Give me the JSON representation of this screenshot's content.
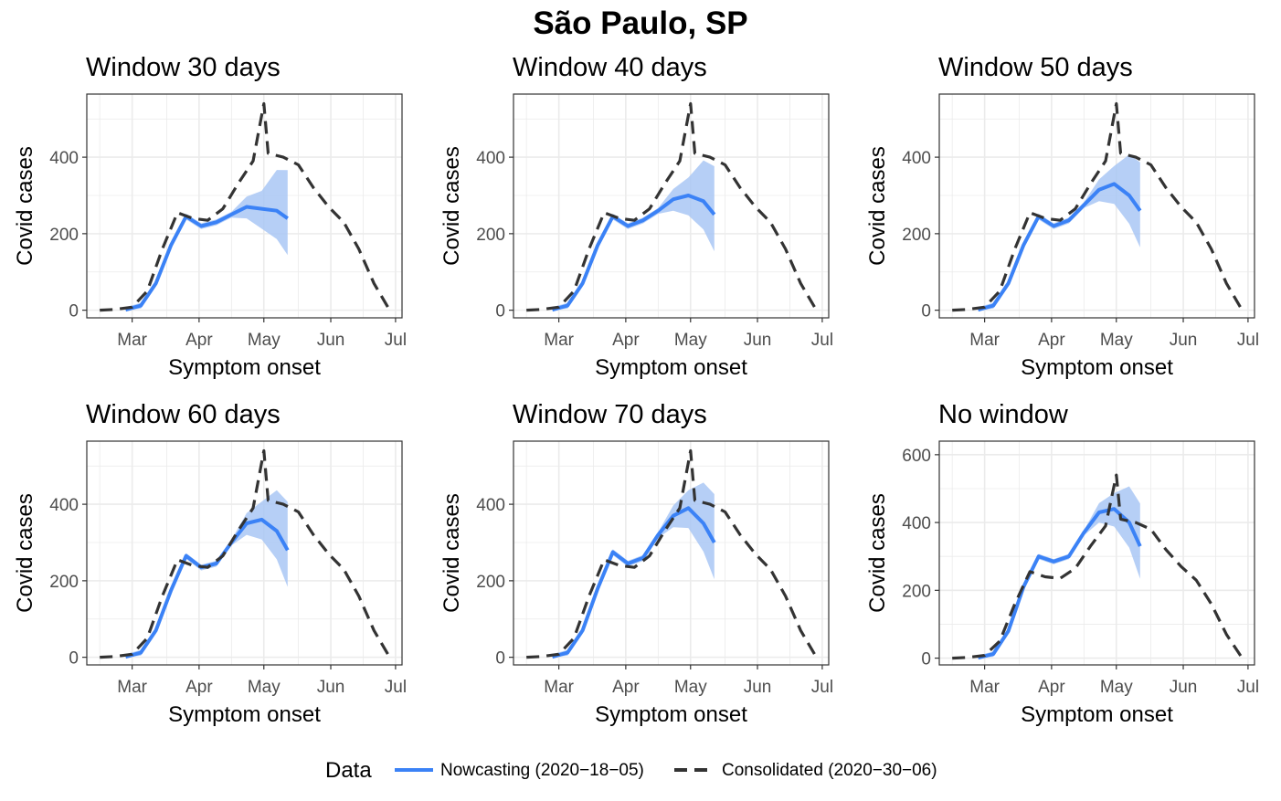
{
  "figure": {
    "title": "São Paulo, SP"
  },
  "legend": {
    "title": "Data",
    "items": [
      {
        "label": "Nowcasting (2020−18−05)",
        "color": "#3b82f6",
        "style": "solid"
      },
      {
        "label": "Consolidated (2020−30−06)",
        "color": "#333333",
        "style": "dashed"
      }
    ],
    "placement": "bottom"
  },
  "colors": {
    "nowcast": "#3b82f6",
    "band": "#a9c7f5",
    "consolidated": "#333333",
    "grid": "#ebebeb"
  },
  "chart_data": [
    {
      "type": "line",
      "title": "Window 30 days",
      "xlabel": "Symptom onset",
      "ylabel": "Covid cases",
      "x_ticks": [
        "Mar",
        "Apr",
        "May",
        "Jun",
        "Jul"
      ],
      "y_ticks": [
        0,
        200,
        400
      ],
      "ylim": [
        -20,
        565
      ],
      "series": [
        {
          "name": "Nowcasting (2020−18−05)",
          "x": [
            "2020-02-27",
            "2020-03-05",
            "2020-03-12",
            "2020-03-19",
            "2020-03-26",
            "2020-04-02",
            "2020-04-09",
            "2020-04-16",
            "2020-04-23",
            "2020-04-30",
            "2020-05-07",
            "2020-05-12"
          ],
          "values": [
            1,
            12,
            70,
            170,
            245,
            220,
            230,
            250,
            270,
            265,
            260,
            240
          ]
        },
        {
          "name": "Consolidated (2020−30−06)",
          "x": [
            "2020-02-15",
            "2020-02-22",
            "2020-03-01",
            "2020-03-08",
            "2020-03-15",
            "2020-03-22",
            "2020-03-29",
            "2020-04-05",
            "2020-04-12",
            "2020-04-19",
            "2020-04-26",
            "2020-05-01",
            "2020-05-03",
            "2020-05-10",
            "2020-05-17",
            "2020-05-24",
            "2020-05-31",
            "2020-06-07",
            "2020-06-14",
            "2020-06-21",
            "2020-06-28"
          ],
          "values": [
            0,
            2,
            8,
            50,
            160,
            255,
            240,
            235,
            265,
            330,
            390,
            540,
            410,
            400,
            380,
            320,
            270,
            230,
            160,
            70,
            3
          ]
        }
      ]
    },
    {
      "type": "line",
      "title": "Window 40 days",
      "xlabel": "Symptom onset",
      "ylabel": "Covid cases",
      "x_ticks": [
        "Mar",
        "Apr",
        "May",
        "Jun",
        "Jul"
      ],
      "y_ticks": [
        0,
        200,
        400
      ],
      "ylim": [
        -20,
        565
      ],
      "series": [
        {
          "name": "Nowcasting (2020−18−05)",
          "x": [
            "2020-02-27",
            "2020-03-05",
            "2020-03-12",
            "2020-03-19",
            "2020-03-26",
            "2020-04-02",
            "2020-04-09",
            "2020-04-16",
            "2020-04-23",
            "2020-04-30",
            "2020-05-07",
            "2020-05-12"
          ],
          "values": [
            1,
            12,
            70,
            170,
            245,
            220,
            235,
            260,
            290,
            300,
            285,
            250
          ]
        },
        {
          "name": "Consolidated (2020−30−06)",
          "x": [
            "2020-02-15",
            "2020-02-22",
            "2020-03-01",
            "2020-03-08",
            "2020-03-15",
            "2020-03-22",
            "2020-03-29",
            "2020-04-05",
            "2020-04-12",
            "2020-04-19",
            "2020-04-26",
            "2020-05-01",
            "2020-05-03",
            "2020-05-10",
            "2020-05-17",
            "2020-05-24",
            "2020-05-31",
            "2020-06-07",
            "2020-06-14",
            "2020-06-21",
            "2020-06-28"
          ],
          "values": [
            0,
            2,
            8,
            50,
            160,
            255,
            240,
            235,
            265,
            330,
            390,
            540,
            410,
            400,
            380,
            320,
            270,
            230,
            160,
            70,
            3
          ]
        }
      ]
    },
    {
      "type": "line",
      "title": "Window 50 days",
      "xlabel": "Symptom onset",
      "ylabel": "Covid cases",
      "x_ticks": [
        "Mar",
        "Apr",
        "May",
        "Jun",
        "Jul"
      ],
      "y_ticks": [
        0,
        200,
        400
      ],
      "ylim": [
        -20,
        565
      ],
      "series": [
        {
          "name": "Nowcasting (2020−18−05)",
          "x": [
            "2020-02-27",
            "2020-03-05",
            "2020-03-12",
            "2020-03-19",
            "2020-03-26",
            "2020-04-02",
            "2020-04-09",
            "2020-04-16",
            "2020-04-23",
            "2020-04-30",
            "2020-05-07",
            "2020-05-12"
          ],
          "values": [
            1,
            12,
            70,
            170,
            245,
            220,
            235,
            275,
            315,
            330,
            300,
            260
          ]
        },
        {
          "name": "Consolidated (2020−30−06)",
          "x": [
            "2020-02-15",
            "2020-02-22",
            "2020-03-01",
            "2020-03-08",
            "2020-03-15",
            "2020-03-22",
            "2020-03-29",
            "2020-04-05",
            "2020-04-12",
            "2020-04-19",
            "2020-04-26",
            "2020-05-01",
            "2020-05-03",
            "2020-05-10",
            "2020-05-17",
            "2020-05-24",
            "2020-05-31",
            "2020-06-07",
            "2020-06-14",
            "2020-06-21",
            "2020-06-28"
          ],
          "values": [
            0,
            2,
            8,
            50,
            160,
            255,
            240,
            235,
            265,
            330,
            390,
            540,
            410,
            400,
            380,
            320,
            270,
            230,
            160,
            70,
            3
          ]
        }
      ]
    },
    {
      "type": "line",
      "title": "Window 60 days",
      "xlabel": "Symptom onset",
      "ylabel": "Covid cases",
      "x_ticks": [
        "Mar",
        "Apr",
        "May",
        "Jun",
        "Jul"
      ],
      "y_ticks": [
        0,
        200,
        400
      ],
      "ylim": [
        -20,
        565
      ],
      "series": [
        {
          "name": "Nowcasting (2020−18−05)",
          "x": [
            "2020-02-27",
            "2020-03-05",
            "2020-03-12",
            "2020-03-19",
            "2020-03-26",
            "2020-04-02",
            "2020-04-09",
            "2020-04-16",
            "2020-04-23",
            "2020-04-30",
            "2020-05-07",
            "2020-05-12"
          ],
          "values": [
            1,
            12,
            70,
            175,
            265,
            235,
            245,
            300,
            350,
            360,
            330,
            280
          ]
        },
        {
          "name": "Consolidated (2020−30−06)",
          "x": [
            "2020-02-15",
            "2020-02-22",
            "2020-03-01",
            "2020-03-08",
            "2020-03-15",
            "2020-03-22",
            "2020-03-29",
            "2020-04-05",
            "2020-04-12",
            "2020-04-19",
            "2020-04-26",
            "2020-05-01",
            "2020-05-03",
            "2020-05-10",
            "2020-05-17",
            "2020-05-24",
            "2020-05-31",
            "2020-06-07",
            "2020-06-14",
            "2020-06-21",
            "2020-06-28"
          ],
          "values": [
            0,
            2,
            8,
            50,
            160,
            255,
            240,
            235,
            265,
            330,
            390,
            540,
            410,
            400,
            380,
            320,
            270,
            230,
            160,
            70,
            3
          ]
        }
      ]
    },
    {
      "type": "line",
      "title": "Window 70 days",
      "xlabel": "Symptom onset",
      "ylabel": "Covid cases",
      "x_ticks": [
        "Mar",
        "Apr",
        "May",
        "Jun",
        "Jul"
      ],
      "y_ticks": [
        0,
        200,
        400
      ],
      "ylim": [
        -20,
        565
      ],
      "series": [
        {
          "name": "Nowcasting (2020−18−05)",
          "x": [
            "2020-02-27",
            "2020-03-05",
            "2020-03-12",
            "2020-03-19",
            "2020-03-26",
            "2020-04-02",
            "2020-04-09",
            "2020-04-16",
            "2020-04-23",
            "2020-04-30",
            "2020-05-07",
            "2020-05-12"
          ],
          "values": [
            1,
            12,
            70,
            180,
            275,
            245,
            260,
            320,
            370,
            390,
            350,
            300
          ]
        },
        {
          "name": "Consolidated (2020−30−06)",
          "x": [
            "2020-02-15",
            "2020-02-22",
            "2020-03-01",
            "2020-03-08",
            "2020-03-15",
            "2020-03-22",
            "2020-03-29",
            "2020-04-05",
            "2020-04-12",
            "2020-04-19",
            "2020-04-26",
            "2020-05-01",
            "2020-05-03",
            "2020-05-10",
            "2020-05-17",
            "2020-05-24",
            "2020-05-31",
            "2020-06-07",
            "2020-06-14",
            "2020-06-21",
            "2020-06-28"
          ],
          "values": [
            0,
            2,
            8,
            50,
            160,
            255,
            240,
            235,
            265,
            330,
            390,
            540,
            410,
            400,
            380,
            320,
            270,
            230,
            160,
            70,
            3
          ]
        }
      ]
    },
    {
      "type": "line",
      "title": "No window",
      "xlabel": "Symptom onset",
      "ylabel": "Covid cases",
      "x_ticks": [
        "Mar",
        "Apr",
        "May",
        "Jun",
        "Jul"
      ],
      "y_ticks": [
        0,
        200,
        400,
        600
      ],
      "ylim": [
        -20,
        640
      ],
      "series": [
        {
          "name": "Nowcasting (2020−18−05)",
          "x": [
            "2020-02-27",
            "2020-03-05",
            "2020-03-12",
            "2020-03-19",
            "2020-03-26",
            "2020-04-02",
            "2020-04-09",
            "2020-04-16",
            "2020-04-23",
            "2020-04-30",
            "2020-05-07",
            "2020-05-12"
          ],
          "values": [
            1,
            12,
            80,
            210,
            300,
            285,
            300,
            370,
            430,
            440,
            400,
            330
          ]
        },
        {
          "name": "Consolidated (2020−30−06)",
          "x": [
            "2020-02-15",
            "2020-02-22",
            "2020-03-01",
            "2020-03-08",
            "2020-03-15",
            "2020-03-22",
            "2020-03-29",
            "2020-04-05",
            "2020-04-12",
            "2020-04-19",
            "2020-04-26",
            "2020-05-01",
            "2020-05-03",
            "2020-05-10",
            "2020-05-17",
            "2020-05-24",
            "2020-05-31",
            "2020-06-07",
            "2020-06-14",
            "2020-06-21",
            "2020-06-28"
          ],
          "values": [
            0,
            2,
            8,
            50,
            160,
            255,
            240,
            235,
            265,
            330,
            390,
            540,
            410,
            400,
            380,
            320,
            270,
            230,
            160,
            70,
            3
          ]
        }
      ]
    }
  ]
}
